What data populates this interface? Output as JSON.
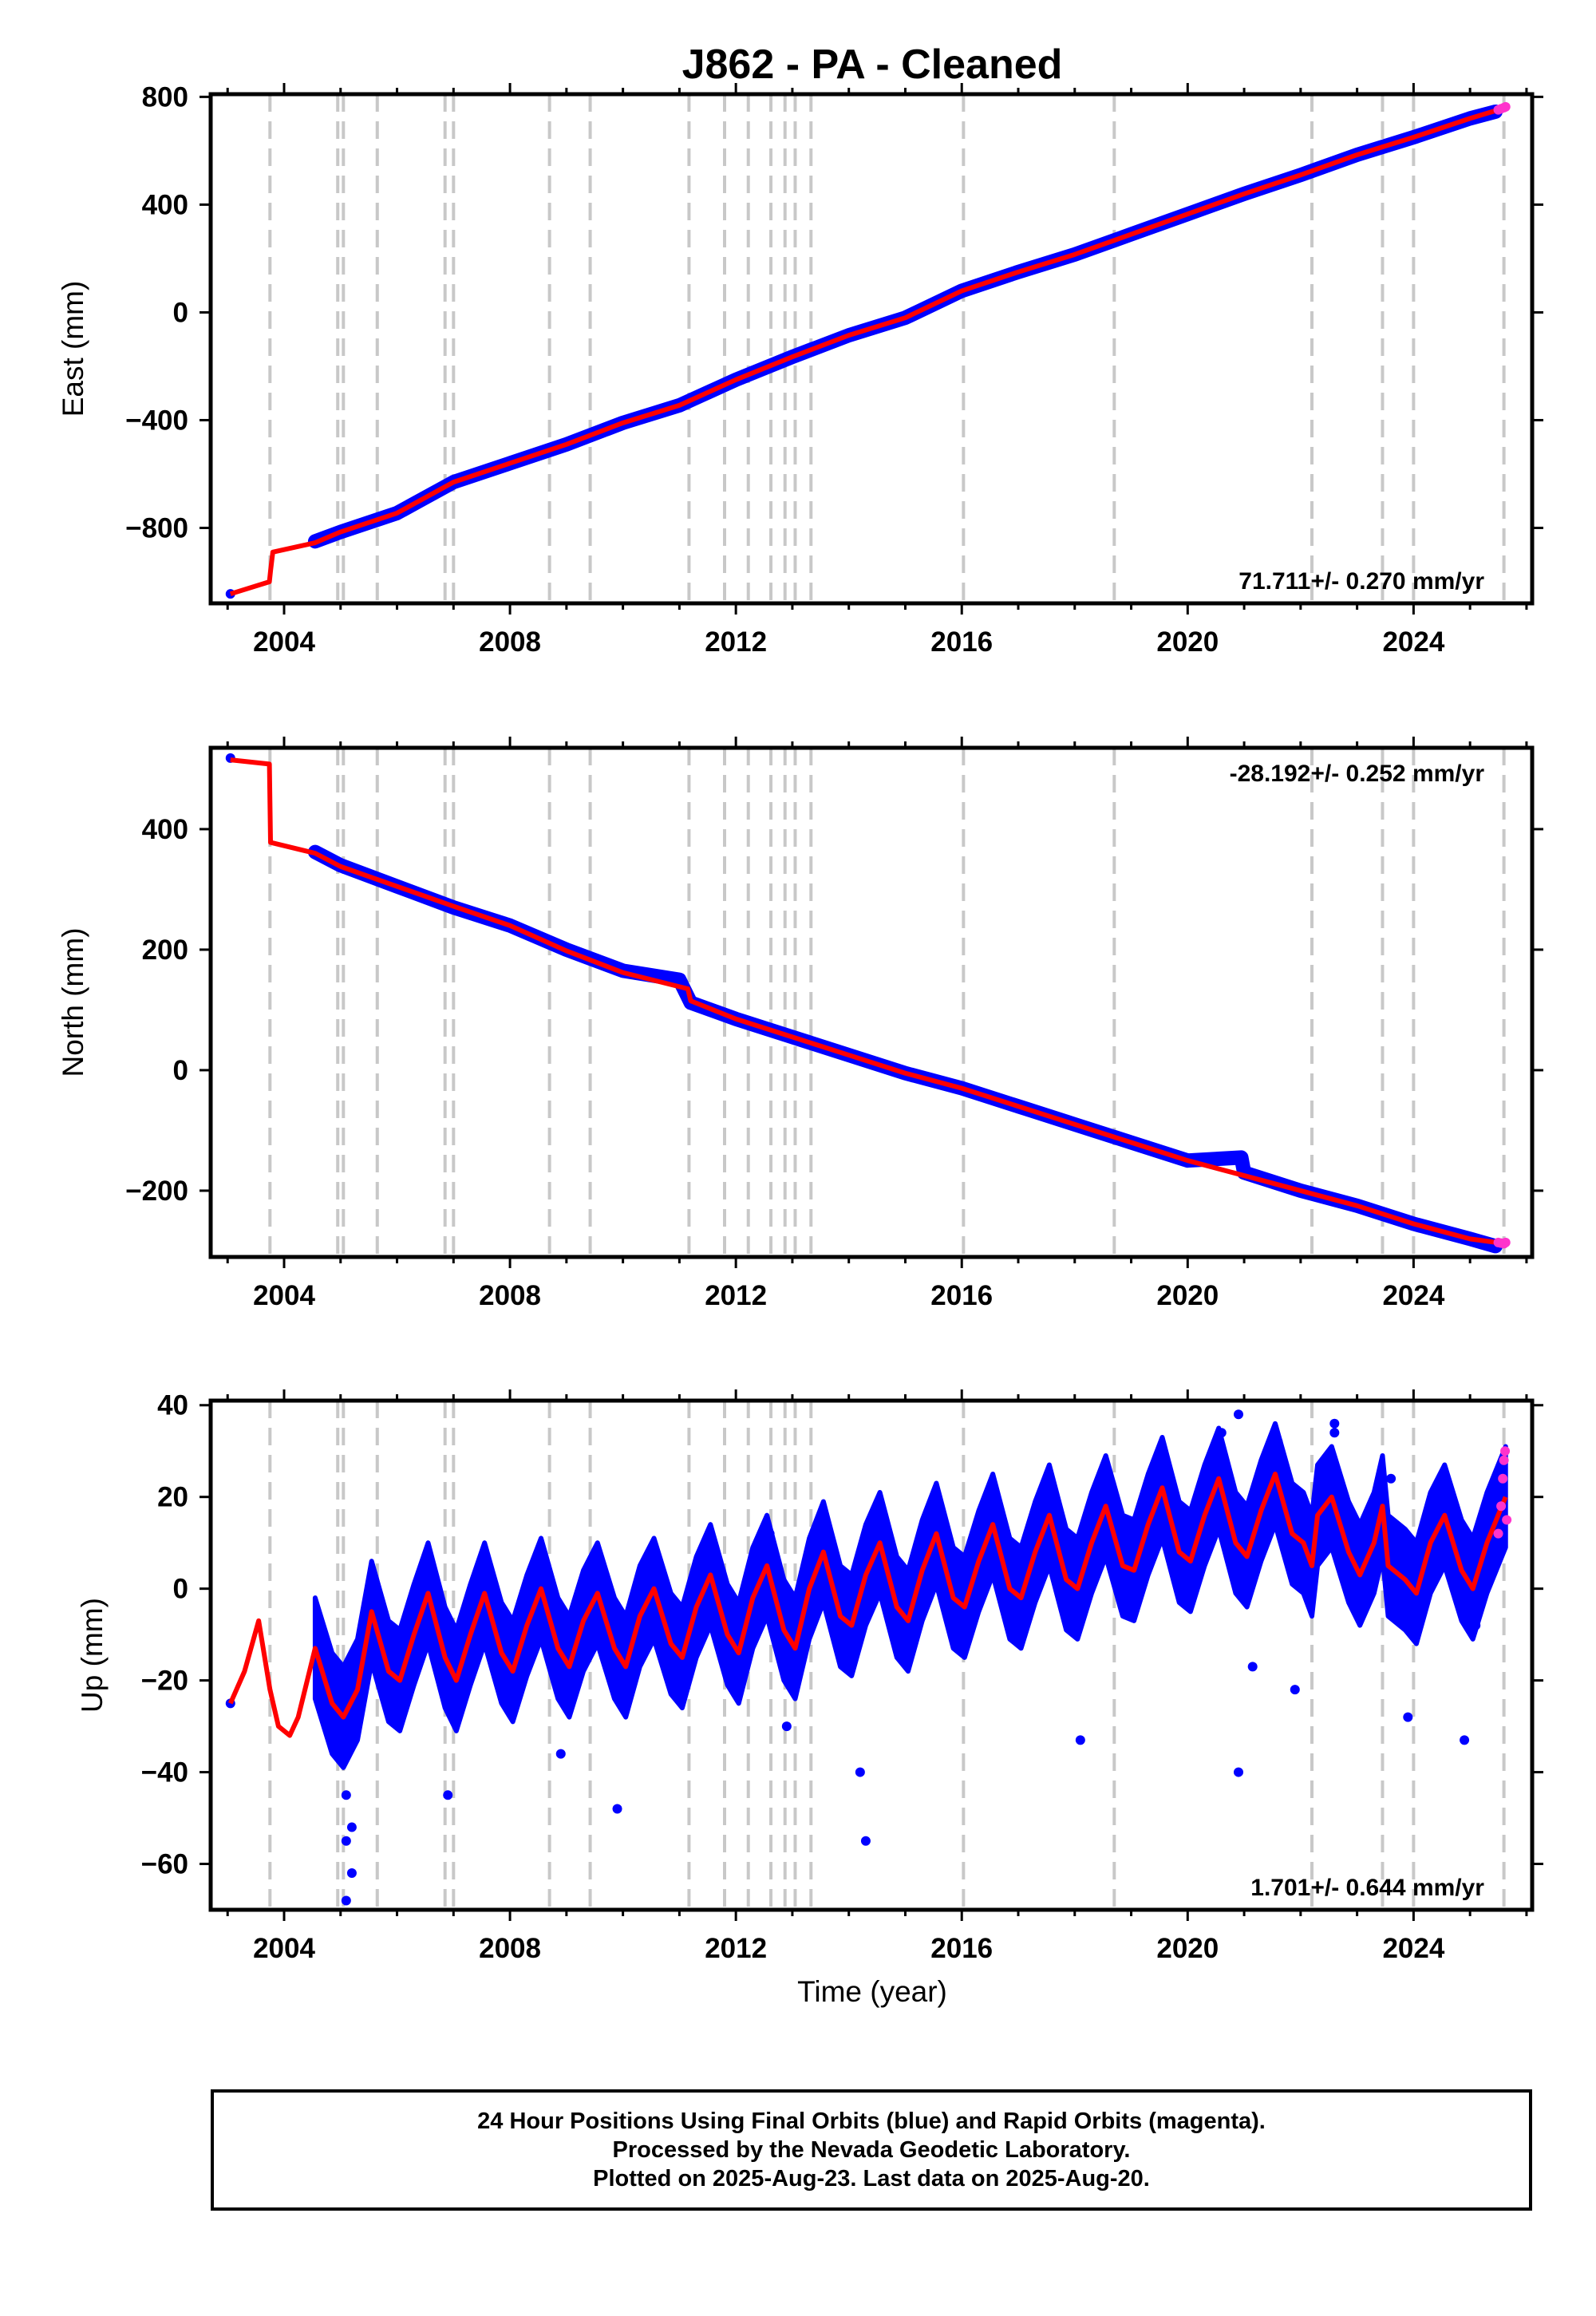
{
  "figure_title": "J862  - PA - Cleaned",
  "colors": {
    "final_orbits": "#0000ff",
    "rapid_orbits": "#ff33cc",
    "model_fit": "#ff0000",
    "event_lines": "#c8c8c8"
  },
  "chart_data": [
    {
      "type": "scatter",
      "component": "East",
      "ylabel": "East (mm)",
      "xlabel": "",
      "xlim": [
        2002.7,
        2026.1
      ],
      "ylim": [
        -1080,
        810
      ],
      "xticks": [
        2004,
        2008,
        2012,
        2016,
        2020,
        2024
      ],
      "yticks": [
        -800,
        -400,
        0,
        400,
        800
      ],
      "rate_label": "71.711+/- 0.270 mm/yr",
      "rate_position": "bottom-right",
      "grid": false,
      "event_lines": [
        2003.75,
        2004.95,
        2005.05,
        2005.65,
        2006.85,
        2007.0,
        2008.7,
        2009.42,
        2011.17,
        2011.8,
        2012.22,
        2012.62,
        2012.87,
        2013.05,
        2013.33,
        2016.03,
        2018.7,
        2022.2,
        2023.45,
        2024.0,
        2025.6
      ],
      "series": [
        {
          "role": "final",
          "x": [
            2003.05,
            2004.55,
            2005.0,
            2006.0,
            2007.0,
            2008.0,
            2009.0,
            2010.0,
            2011.0,
            2012.0,
            2013.0,
            2014.0,
            2015.0,
            2016.0,
            2017.0,
            2018.0,
            2019.0,
            2020.0,
            2021.0,
            2022.0,
            2023.0,
            2024.0,
            2025.0,
            2025.45
          ],
          "y": [
            -1045,
            -850,
            -815,
            -745,
            -630,
            -560,
            -490,
            -410,
            -345,
            -250,
            -165,
            -85,
            -20,
            80,
            150,
            215,
            290,
            365,
            440,
            510,
            585,
            650,
            720,
            745
          ]
        },
        {
          "role": "rapid",
          "x": [
            2025.5,
            2025.55,
            2025.6,
            2025.63
          ],
          "y": [
            752,
            756,
            760,
            763
          ]
        },
        {
          "role": "fit",
          "x": [
            2003.05,
            2003.74,
            2003.76,
            2003.8,
            2004.55,
            2005.0,
            2006.0,
            2007.0,
            2008.0,
            2009.0,
            2010.0,
            2011.0,
            2012.0,
            2013.0,
            2014.0,
            2015.0,
            2016.0,
            2017.0,
            2018.0,
            2019.0,
            2020.0,
            2021.0,
            2022.0,
            2023.0,
            2024.0,
            2025.0,
            2025.63
          ],
          "y": [
            -1045,
            -1000,
            -960,
            -890,
            -855,
            -815,
            -745,
            -630,
            -560,
            -490,
            -410,
            -345,
            -250,
            -165,
            -85,
            -20,
            80,
            150,
            215,
            290,
            365,
            440,
            510,
            585,
            650,
            720,
            760
          ]
        }
      ]
    },
    {
      "type": "scatter",
      "component": "North",
      "ylabel": "North (mm)",
      "xlabel": "",
      "xlim": [
        2002.7,
        2026.1
      ],
      "ylim": [
        -310,
        535
      ],
      "xticks": [
        2004,
        2008,
        2012,
        2016,
        2020,
        2024
      ],
      "yticks": [
        -200,
        0,
        200,
        400
      ],
      "rate_label": "-28.192+/- 0.252 mm/yr",
      "rate_position": "top-right",
      "grid": false,
      "event_lines": [
        2003.75,
        2004.95,
        2005.05,
        2005.65,
        2006.85,
        2007.0,
        2008.7,
        2009.42,
        2011.17,
        2011.8,
        2012.22,
        2012.62,
        2012.87,
        2013.05,
        2013.33,
        2016.03,
        2018.7,
        2022.2,
        2023.45,
        2024.0,
        2025.6
      ],
      "series": [
        {
          "role": "final",
          "x": [
            2003.05,
            2004.55,
            2005.0,
            2006.0,
            2007.0,
            2008.0,
            2009.0,
            2010.0,
            2011.0,
            2011.2,
            2012.0,
            2013.0,
            2014.0,
            2015.0,
            2016.0,
            2017.0,
            2018.0,
            2019.0,
            2020.0,
            2020.95,
            2021.0,
            2022.0,
            2023.0,
            2024.0,
            2025.0,
            2025.45
          ],
          "y": [
            518,
            362,
            340,
            305,
            270,
            240,
            200,
            165,
            150,
            112,
            85,
            55,
            25,
            -5,
            -30,
            -60,
            -90,
            -120,
            -150,
            -145,
            -170,
            -200,
            -225,
            -255,
            -280,
            -292
          ]
        },
        {
          "role": "rapid",
          "x": [
            2025.5,
            2025.55,
            2025.6,
            2025.63
          ],
          "y": [
            -286,
            -287,
            -288,
            -286
          ]
        },
        {
          "role": "fit",
          "x": [
            2003.05,
            2003.74,
            2003.76,
            2004.55,
            2005.0,
            2006.0,
            2007.0,
            2008.0,
            2009.0,
            2010.0,
            2011.15,
            2011.2,
            2012.0,
            2013.0,
            2014.0,
            2015.0,
            2016.0,
            2017.0,
            2018.0,
            2019.0,
            2020.0,
            2021.0,
            2022.0,
            2023.0,
            2024.0,
            2025.0,
            2025.63
          ],
          "y": [
            515,
            508,
            378,
            360,
            338,
            305,
            272,
            240,
            198,
            162,
            135,
            115,
            85,
            55,
            25,
            -5,
            -30,
            -60,
            -90,
            -120,
            -150,
            -175,
            -200,
            -225,
            -255,
            -280,
            -288
          ]
        }
      ]
    },
    {
      "type": "scatter",
      "component": "Up",
      "ylabel": "Up (mm)",
      "xlabel": "Time (year)",
      "xlim": [
        2002.7,
        2026.1
      ],
      "ylim": [
        -70,
        41
      ],
      "xticks": [
        2004,
        2008,
        2012,
        2016,
        2020,
        2024
      ],
      "yticks": [
        -60,
        -40,
        -20,
        0,
        20,
        40
      ],
      "rate_label": "1.701+/- 0.644 mm/yr",
      "rate_position": "bottom-right",
      "grid": false,
      "event_lines": [
        2003.75,
        2004.95,
        2005.05,
        2005.65,
        2006.85,
        2007.0,
        2008.7,
        2009.42,
        2011.17,
        2011.8,
        2012.22,
        2012.62,
        2012.87,
        2013.05,
        2013.33,
        2016.03,
        2018.7,
        2022.2,
        2023.45,
        2024.0,
        2025.6
      ],
      "series": [
        {
          "role": "final",
          "x": [
            2003.05,
            2004.6,
            2004.85,
            2005.1,
            2005.2,
            2005.6,
            2006.1,
            2006.6,
            2007.1,
            2007.6,
            2008.1,
            2008.6,
            2009.1,
            2009.6,
            2010.1,
            2010.6,
            2011.1,
            2011.6,
            2012.1,
            2012.6,
            2013.1,
            2013.6,
            2014.1,
            2014.6,
            2015.1,
            2015.6,
            2016.1,
            2016.6,
            2017.1,
            2017.6,
            2018.1,
            2018.6,
            2019.1,
            2019.6,
            2020.1,
            2020.6,
            2021.1,
            2021.6,
            2022.1,
            2022.6,
            2023.1,
            2023.6,
            2024.1,
            2024.6,
            2025.1,
            2025.45,
            2005.1,
            2005.1,
            2005.2,
            2006.9,
            2008.9,
            2009.9,
            2012.9,
            2014.2,
            2014.3,
            2018.1,
            2020.9,
            2021.15,
            2021.9,
            2023.9,
            2024.9,
            2020.9,
            2022.6
          ],
          "y": [
            -25,
            -13,
            -22,
            -45,
            -62,
            -5,
            -22,
            4,
            -25,
            2,
            -22,
            3,
            -18,
            2,
            -18,
            4,
            -14,
            8,
            -12,
            12,
            -10,
            14,
            -7,
            16,
            -5,
            18,
            -6,
            20,
            -3,
            22,
            -2,
            24,
            2,
            28,
            0,
            34,
            4,
            32,
            3,
            34,
            0,
            24,
            -4,
            22,
            -8,
            20,
            -55,
            -68,
            -52,
            -45,
            -36,
            -48,
            -30,
            -40,
            -55,
            -33,
            -40,
            -17,
            -22,
            -28,
            -33,
            38,
            36
          ]
        },
        {
          "role": "rapid",
          "x": [
            2025.5,
            2025.55,
            2025.58,
            2025.6,
            2025.62,
            2025.65
          ],
          "y": [
            12,
            18,
            24,
            28,
            30,
            15
          ]
        },
        {
          "role": "fit",
          "x": [
            2003.05,
            2003.3,
            2003.55,
            2003.75,
            2003.9,
            2004.1,
            2004.25,
            2004.55,
            2004.85,
            2005.05,
            2005.3,
            2005.55,
            2005.85,
            2006.05,
            2006.3,
            2006.55,
            2006.85,
            2007.05,
            2007.3,
            2007.55,
            2007.85,
            2008.05,
            2008.3,
            2008.55,
            2008.85,
            2009.05,
            2009.3,
            2009.55,
            2009.85,
            2010.05,
            2010.3,
            2010.55,
            2010.85,
            2011.05,
            2011.3,
            2011.55,
            2011.85,
            2012.05,
            2012.3,
            2012.55,
            2012.85,
            2013.05,
            2013.3,
            2013.55,
            2013.85,
            2014.05,
            2014.3,
            2014.55,
            2014.85,
            2015.05,
            2015.3,
            2015.55,
            2015.85,
            2016.05,
            2016.3,
            2016.55,
            2016.85,
            2017.05,
            2017.3,
            2017.55,
            2017.85,
            2018.05,
            2018.3,
            2018.55,
            2018.85,
            2019.05,
            2019.3,
            2019.55,
            2019.85,
            2020.05,
            2020.3,
            2020.55,
            2020.85,
            2021.05,
            2021.3,
            2021.55,
            2021.85,
            2022.05,
            2022.2,
            2022.3,
            2022.55,
            2022.85,
            2023.05,
            2023.3,
            2023.45,
            2023.55,
            2023.85,
            2024.05,
            2024.3,
            2024.55,
            2024.85,
            2025.05,
            2025.3,
            2025.63
          ],
          "y": [
            -25,
            -18,
            -7,
            -22,
            -30,
            -32,
            -28,
            -13,
            -25,
            -28,
            -22,
            -5,
            -18,
            -20,
            -10,
            -1,
            -15,
            -20,
            -10,
            -1,
            -14,
            -18,
            -8,
            0,
            -13,
            -17,
            -7,
            -1,
            -13,
            -17,
            -6,
            0,
            -12,
            -15,
            -4,
            3,
            -10,
            -14,
            -2,
            5,
            -9,
            -13,
            0,
            8,
            -6,
            -8,
            3,
            10,
            -4,
            -7,
            4,
            12,
            -2,
            -4,
            6,
            14,
            0,
            -2,
            8,
            16,
            2,
            0,
            10,
            18,
            5,
            4,
            14,
            22,
            8,
            6,
            16,
            24,
            10,
            7,
            17,
            25,
            12,
            10,
            5,
            16,
            20,
            8,
            3,
            10,
            18,
            5,
            2,
            -1,
            10,
            16,
            4,
            0,
            10,
            20
          ]
        }
      ]
    }
  ],
  "footer": {
    "line1": "24 Hour Positions Using Final Orbits (blue) and Rapid Orbits (magenta).",
    "line2": "Processed by the Nevada Geodetic Laboratory.",
    "line3": "Plotted on 2025-Aug-23. Last data on 2025-Aug-20."
  }
}
